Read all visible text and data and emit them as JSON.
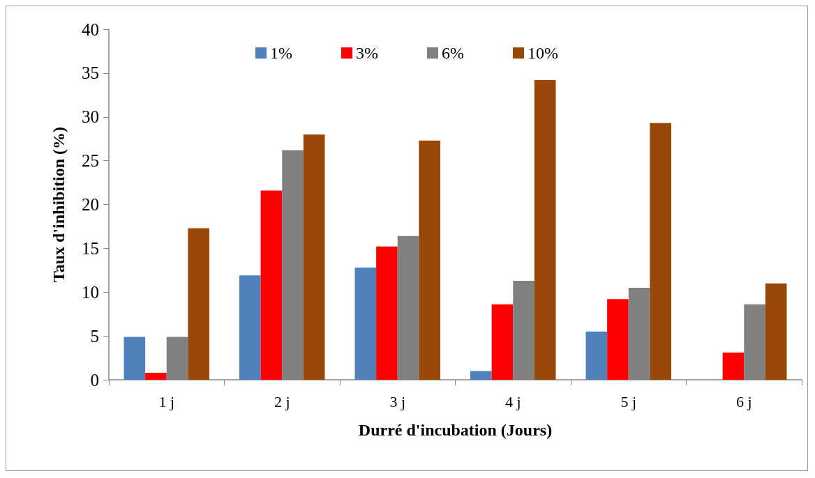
{
  "chart_data": {
    "type": "bar",
    "xlabel": "Durré d'incubation (Jours)",
    "ylabel": "Taux d'inhibition (%)",
    "categories": [
      "1 j",
      "2 j",
      "3 j",
      "4 j",
      "5 j",
      "6 j"
    ],
    "series": [
      {
        "name": "1%",
        "color": "#4f81bd",
        "values": [
          4.9,
          11.9,
          12.8,
          1.0,
          5.5,
          0
        ]
      },
      {
        "name": "3%",
        "color": "#ff0000",
        "values": [
          0.8,
          21.6,
          15.2,
          8.6,
          9.2,
          3.1
        ]
      },
      {
        "name": "6%",
        "color": "#808080",
        "values": [
          4.9,
          26.2,
          16.4,
          11.3,
          10.5,
          8.6
        ]
      },
      {
        "name": "10%",
        "color": "#974706",
        "values": [
          17.3,
          28.0,
          27.3,
          34.2,
          29.3,
          11.0
        ]
      }
    ],
    "ylim": [
      0,
      40
    ],
    "yticks": [
      0,
      5,
      10,
      15,
      20,
      25,
      30,
      35,
      40
    ],
    "grid": false,
    "legend": "top"
  }
}
